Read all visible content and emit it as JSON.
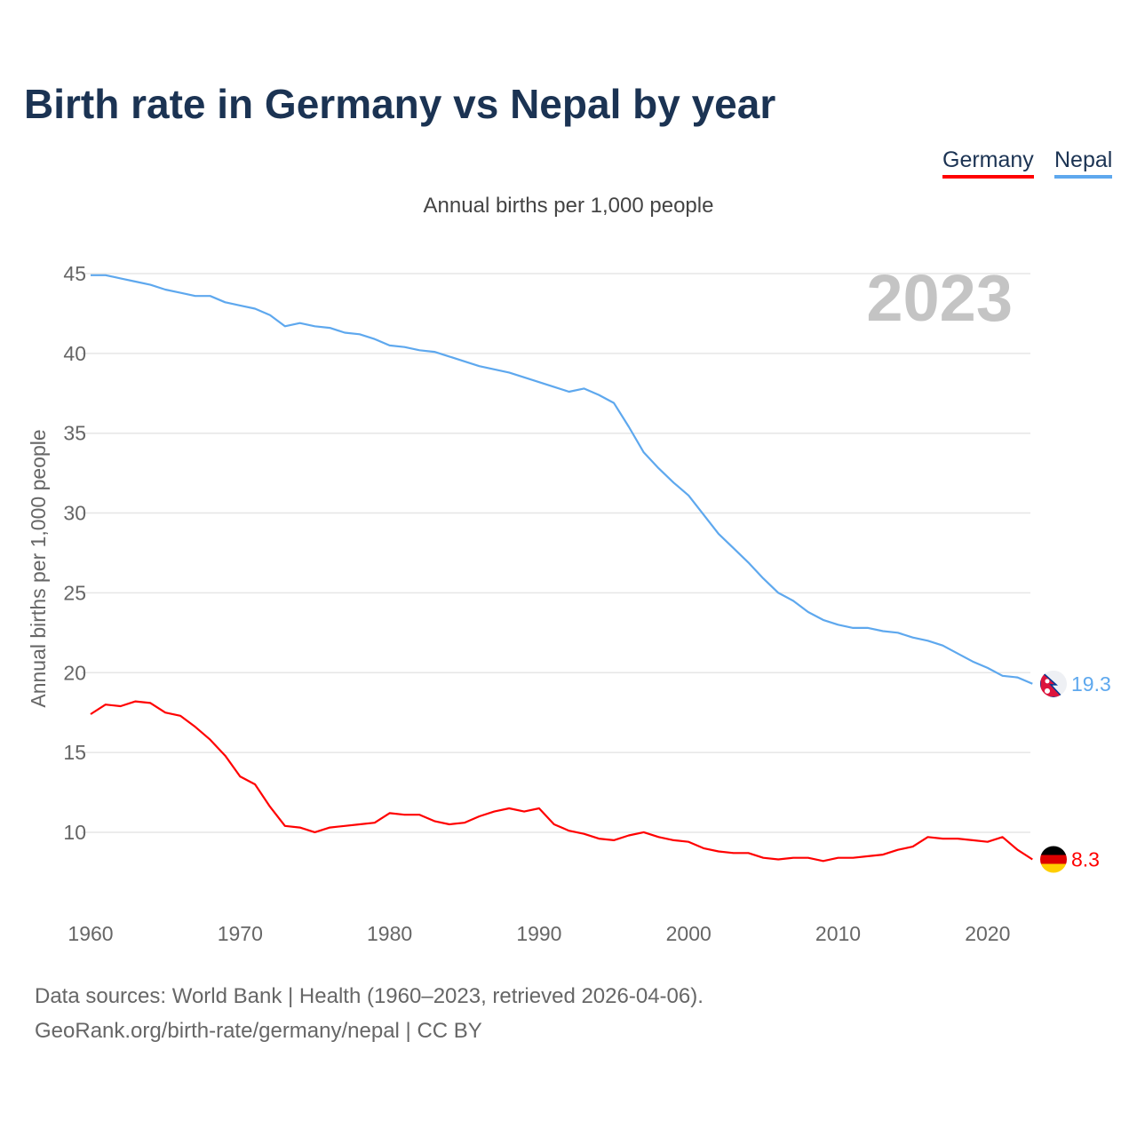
{
  "chart_data": {
    "type": "line",
    "title": "Birth rate in Germany vs Nepal by year",
    "subtitle": "Annual births per 1,000 people",
    "xlabel": "",
    "ylabel": "Annual births per 1,000 people",
    "year_label": "2023",
    "x_start": 1960,
    "x_end": 2023,
    "xticks": [
      1960,
      1970,
      1980,
      1990,
      2000,
      2010,
      2020
    ],
    "yticks": [
      10,
      15,
      20,
      25,
      30,
      35,
      40,
      45
    ],
    "ylim": [
      7.5,
      45
    ],
    "grid": true,
    "legend_placement": "top-right",
    "series": [
      {
        "name": "Germany",
        "color": "#ff0000",
        "end_label": "8.3",
        "flag": "germany-flag",
        "values": [
          17.4,
          18.0,
          17.9,
          18.2,
          18.1,
          17.5,
          17.3,
          16.6,
          15.8,
          14.8,
          13.5,
          13.0,
          11.6,
          10.4,
          10.3,
          10.0,
          10.3,
          10.4,
          10.5,
          10.6,
          11.2,
          11.1,
          11.1,
          10.7,
          10.5,
          10.6,
          11.0,
          11.3,
          11.5,
          11.3,
          11.5,
          10.5,
          10.1,
          9.9,
          9.6,
          9.5,
          9.8,
          10.0,
          9.7,
          9.5,
          9.4,
          9.0,
          8.8,
          8.7,
          8.7,
          8.4,
          8.3,
          8.4,
          8.4,
          8.2,
          8.4,
          8.4,
          8.5,
          8.6,
          8.9,
          9.1,
          9.7,
          9.6,
          9.6,
          9.5,
          9.4,
          9.7,
          8.9,
          8.3
        ]
      },
      {
        "name": "Nepal",
        "color": "#5ea8ee",
        "end_label": "19.3",
        "flag": "nepal-flag",
        "values": [
          44.9,
          44.9,
          44.7,
          44.5,
          44.3,
          44.0,
          43.8,
          43.6,
          43.6,
          43.2,
          43.0,
          42.8,
          42.4,
          41.7,
          41.9,
          41.7,
          41.6,
          41.3,
          41.2,
          40.9,
          40.5,
          40.4,
          40.2,
          40.1,
          39.8,
          39.5,
          39.2,
          39.0,
          38.8,
          38.5,
          38.2,
          37.9,
          37.6,
          37.8,
          37.4,
          36.9,
          35.4,
          33.8,
          32.8,
          31.9,
          31.1,
          29.9,
          28.7,
          27.8,
          26.9,
          25.9,
          25.0,
          24.5,
          23.8,
          23.3,
          23.0,
          22.8,
          22.8,
          22.6,
          22.5,
          22.2,
          22.0,
          21.7,
          21.2,
          20.7,
          20.3,
          19.8,
          19.7,
          19.3
        ]
      }
    ]
  },
  "footer": {
    "sources": "Data sources: World Bank | Health (1960–2023, retrieved 2026-04-06).",
    "credit": "GeoRank.org/birth-rate/germany/nepal | CC BY"
  }
}
